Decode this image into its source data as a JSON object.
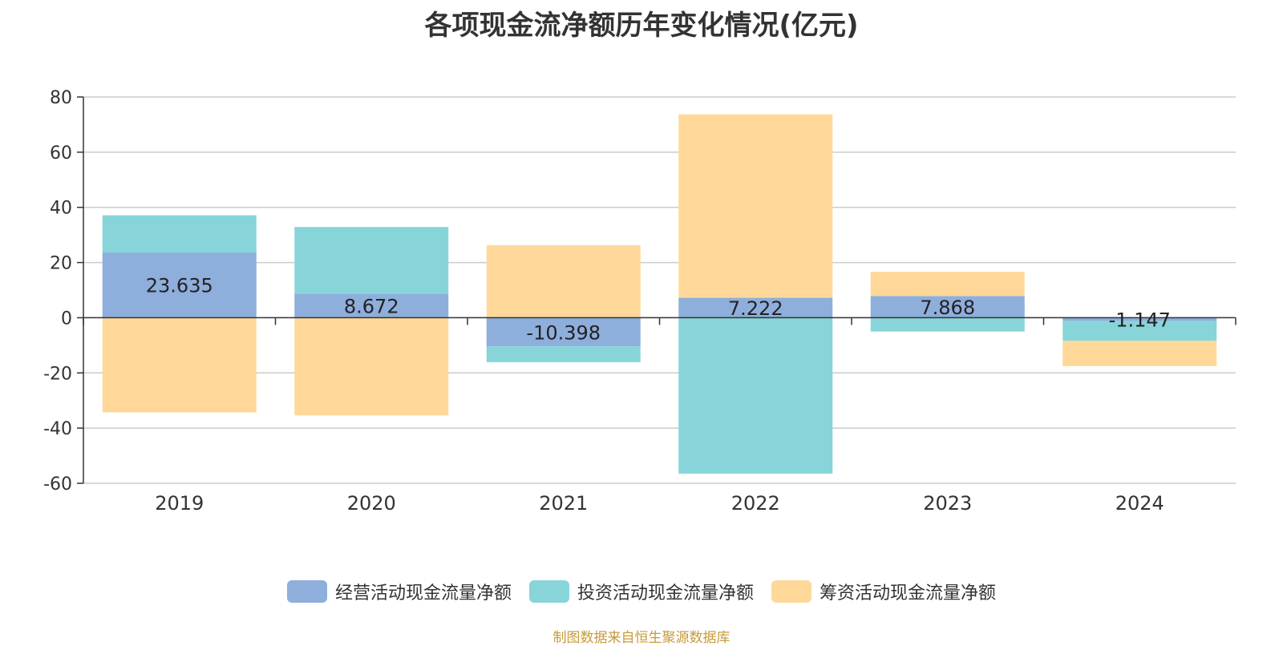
{
  "chart_data": {
    "type": "bar",
    "stacked": true,
    "title": "各项现金流净额历年变化情况(亿元)",
    "categories": [
      "2019",
      "2020",
      "2021",
      "2022",
      "2023",
      "2024"
    ],
    "ylim": [
      -60,
      80
    ],
    "yticks": [
      80,
      60,
      40,
      20,
      0,
      -20,
      -40,
      -60
    ],
    "grid": true,
    "legend_position": "bottom",
    "series": [
      {
        "name": "经营活动现金流量净额",
        "color": "#8eaedc",
        "values": [
          23.635,
          8.672,
          -10.398,
          7.222,
          7.868,
          -1.147
        ],
        "labels": [
          "23.635",
          "8.672",
          "-10.398",
          "7.222",
          "7.868",
          "-1.147"
        ]
      },
      {
        "name": "投资活动现金流量净额",
        "color": "#87d5d9",
        "values": [
          13.5,
          24.2,
          -5.7,
          -56.5,
          -5.0,
          -7.2
        ]
      },
      {
        "name": "筹资活动现金流量净额",
        "color": "#ffd899",
        "values": [
          -34.3,
          -35.4,
          26.3,
          66.5,
          8.8,
          -9.2
        ]
      }
    ]
  },
  "source": "制图数据来自恒生聚源数据库"
}
